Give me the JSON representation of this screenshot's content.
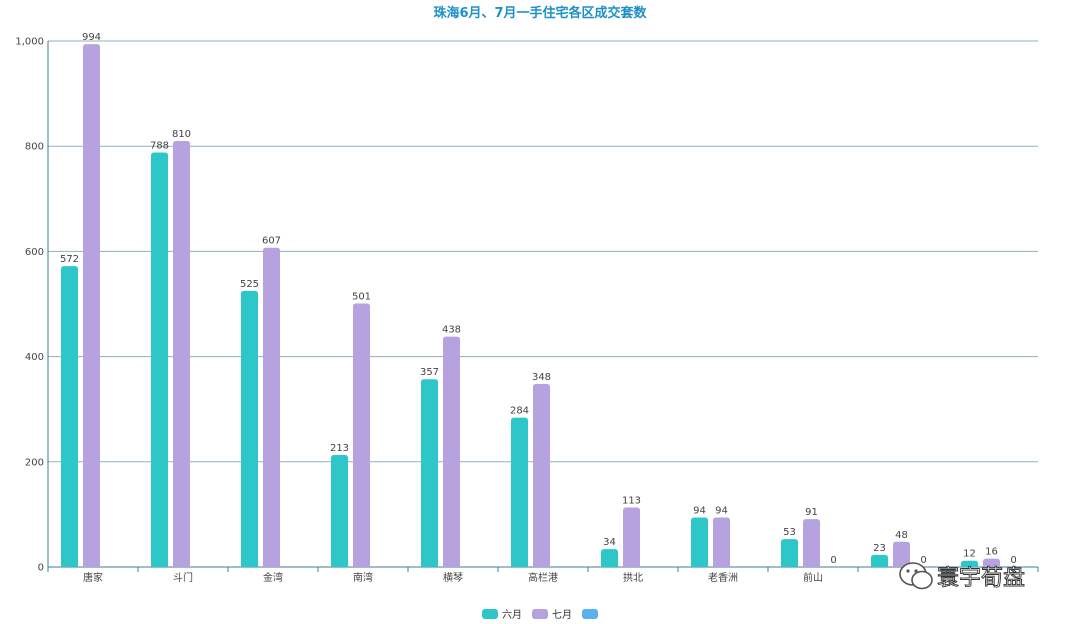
{
  "chart_data": {
    "type": "bar",
    "title": "珠海6月、7月一手住宅各区成交套数",
    "xlabel": "",
    "ylabel": "",
    "ylim": [
      0,
      1000
    ],
    "yticks": [
      "0",
      "200",
      "400",
      "600",
      "800",
      "1,000"
    ],
    "categories": [
      "唐家",
      "斗门",
      "金湾",
      "南湾",
      "横琴",
      "高栏港",
      "拱北",
      "老香洲",
      "前山",
      "",
      ""
    ],
    "series": [
      {
        "name": "六月",
        "color": "#2ec7c9",
        "values": [
          572,
          788,
          525,
          213,
          357,
          284,
          34,
          94,
          53,
          23,
          12
        ]
      },
      {
        "name": "七月",
        "color": "#b6a2de",
        "values": [
          994,
          810,
          607,
          501,
          438,
          348,
          113,
          94,
          91,
          48,
          16
        ]
      },
      {
        "name": "",
        "color": "#5ab1ef",
        "values": [
          null,
          null,
          null,
          null,
          null,
          null,
          null,
          null,
          0,
          0,
          0
        ]
      }
    ],
    "grid": true,
    "legend_position": "bottom-center"
  },
  "watermark": {
    "text": "寰宇荀盘",
    "icon": "wechat-icon"
  }
}
